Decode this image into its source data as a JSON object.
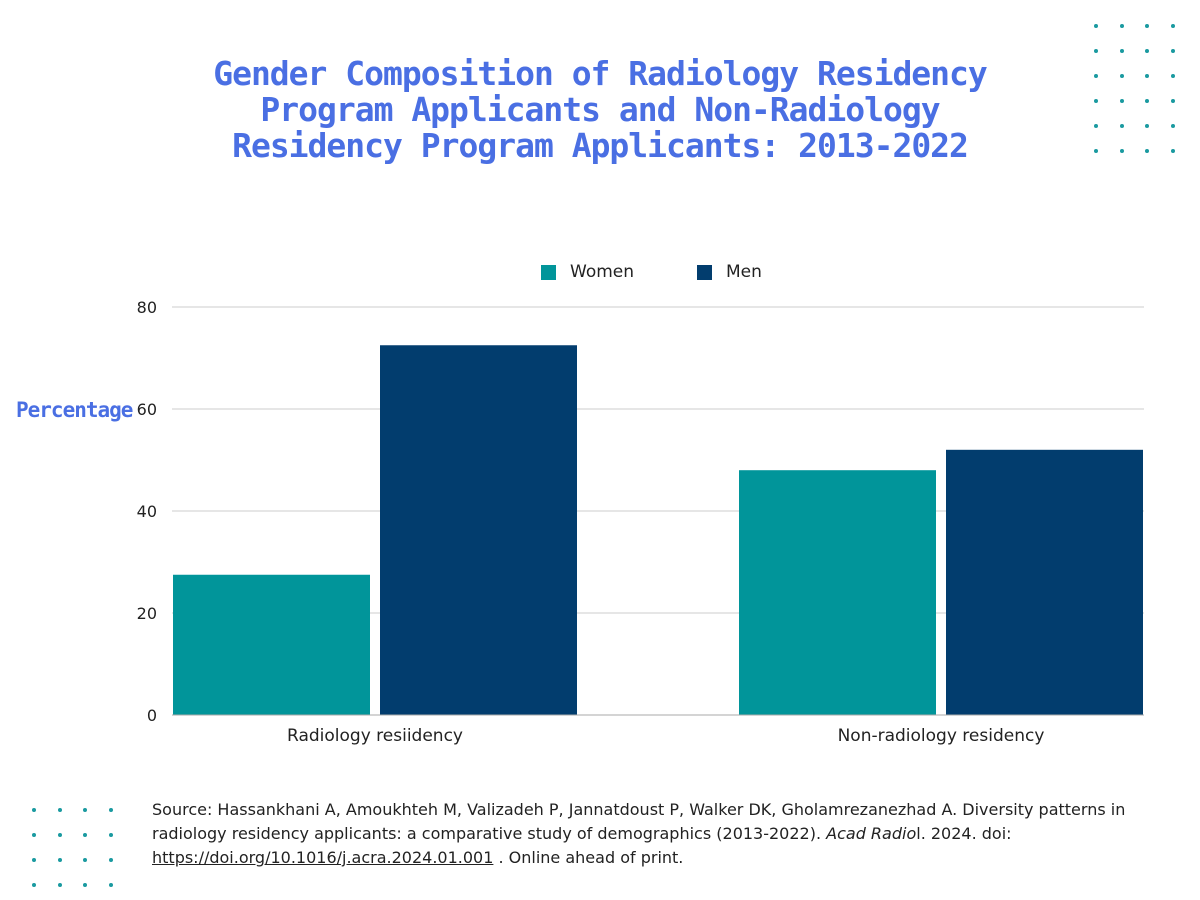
{
  "title_lines": [
    "Gender Composition of Radiology Residency",
    "Program Applicants and Non-Radiology",
    "Residency Program Applicants: 2013-2022"
  ],
  "colors": {
    "women": "#01959a",
    "men": "#023d6e",
    "accent": "#4a6fe3",
    "grid": "#cccccc",
    "dots": "#1a9aa0"
  },
  "chart_data": {
    "type": "bar",
    "title": "Gender Composition of Radiology Residency Program Applicants and Non-Radiology Residency Program Applicants: 2013-2022",
    "categories": [
      "Radiology resiidency",
      "Non-radiology residency"
    ],
    "series": [
      {
        "name": "Women",
        "values": [
          27.5,
          48
        ]
      },
      {
        "name": "Men",
        "values": [
          72.5,
          52
        ]
      }
    ],
    "xlabel": "",
    "ylabel": "Percentage",
    "ylim": [
      0,
      80
    ],
    "yticks": [
      0,
      20,
      40,
      60,
      80
    ],
    "grid": true,
    "legend_position": "top-center"
  },
  "source": {
    "prefix": "Source: Hassankhani A, Amoukhteh M, Valizadeh P, Jannatdoust P, Walker DK, Gholamrezanezhad A. Diversity patterns in radiology residency applicants: a comparative study of demographics (2013-2022). ",
    "journal": "Acad Radio",
    "journal_tail": "l. 2024. doi: ",
    "doi_link": "https://doi.org/10.1016/j.acra.2024.01.001",
    "suffix": " . Online ahead of print."
  }
}
